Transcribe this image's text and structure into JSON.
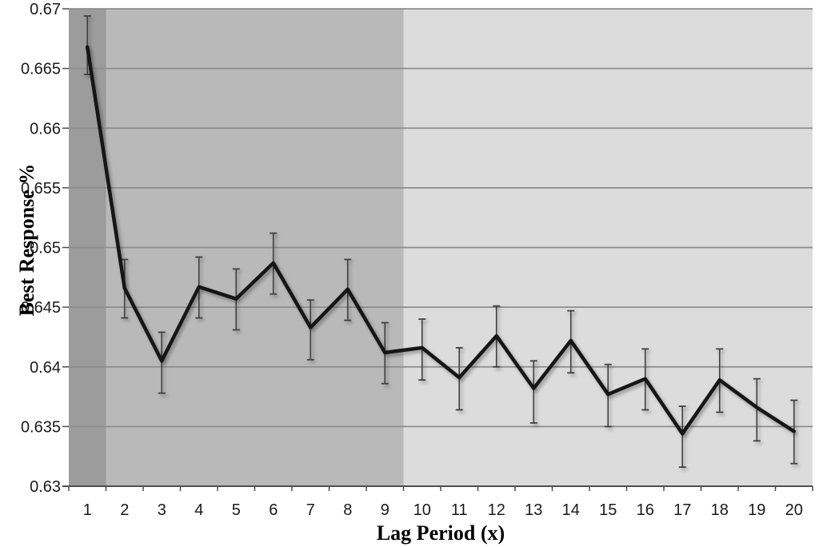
{
  "chart_data": {
    "type": "line",
    "xlabel": "Lag Period (x)",
    "ylabel": "Best Response %",
    "x": [
      1,
      2,
      3,
      4,
      5,
      6,
      7,
      8,
      9,
      10,
      11,
      12,
      13,
      14,
      15,
      16,
      17,
      18,
      19,
      20
    ],
    "series": [
      {
        "name": "Best Response %",
        "values": [
          0.6668,
          0.6466,
          0.6405,
          0.6467,
          0.6457,
          0.6487,
          0.6433,
          0.6465,
          0.6412,
          0.6416,
          0.6391,
          0.6426,
          0.6382,
          0.6422,
          0.6377,
          0.639,
          0.6344,
          0.6389,
          0.6366,
          0.6346
        ],
        "err_low": [
          0.6645,
          0.6441,
          0.6378,
          0.6441,
          0.6431,
          0.6461,
          0.6406,
          0.6439,
          0.6386,
          0.6389,
          0.6364,
          0.64,
          0.6353,
          0.6395,
          0.635,
          0.6364,
          0.6316,
          0.6362,
          0.6338,
          0.6319
        ],
        "err_high": [
          0.6694,
          0.649,
          0.6429,
          0.6492,
          0.6482,
          0.6512,
          0.6456,
          0.649,
          0.6437,
          0.644,
          0.6416,
          0.6451,
          0.6405,
          0.6447,
          0.6402,
          0.6415,
          0.6367,
          0.6415,
          0.639,
          0.6372
        ]
      }
    ],
    "ylim": [
      0.63,
      0.67
    ],
    "ytick_labels": [
      "0.67",
      "0.665",
      "0.66",
      "0.655",
      "0.65",
      "0.645",
      "0.64",
      "0.635",
      "0.63"
    ],
    "grid": true,
    "legend": "none",
    "bands": [
      {
        "from": 0.5,
        "to": 1.5,
        "color": "#9c9c9c"
      },
      {
        "from": 1.5,
        "to": 9.5,
        "color": "#b9b9b9"
      },
      {
        "from": 9.5,
        "to": 20.5,
        "color": "#dcdcdc"
      }
    ],
    "colors": {
      "line": "#141414",
      "error_bar": "#404040",
      "gridline": "#8d8d8d",
      "axis": "#4f4f4f",
      "label": "#1a1a1a",
      "background": "#ffffff"
    }
  }
}
